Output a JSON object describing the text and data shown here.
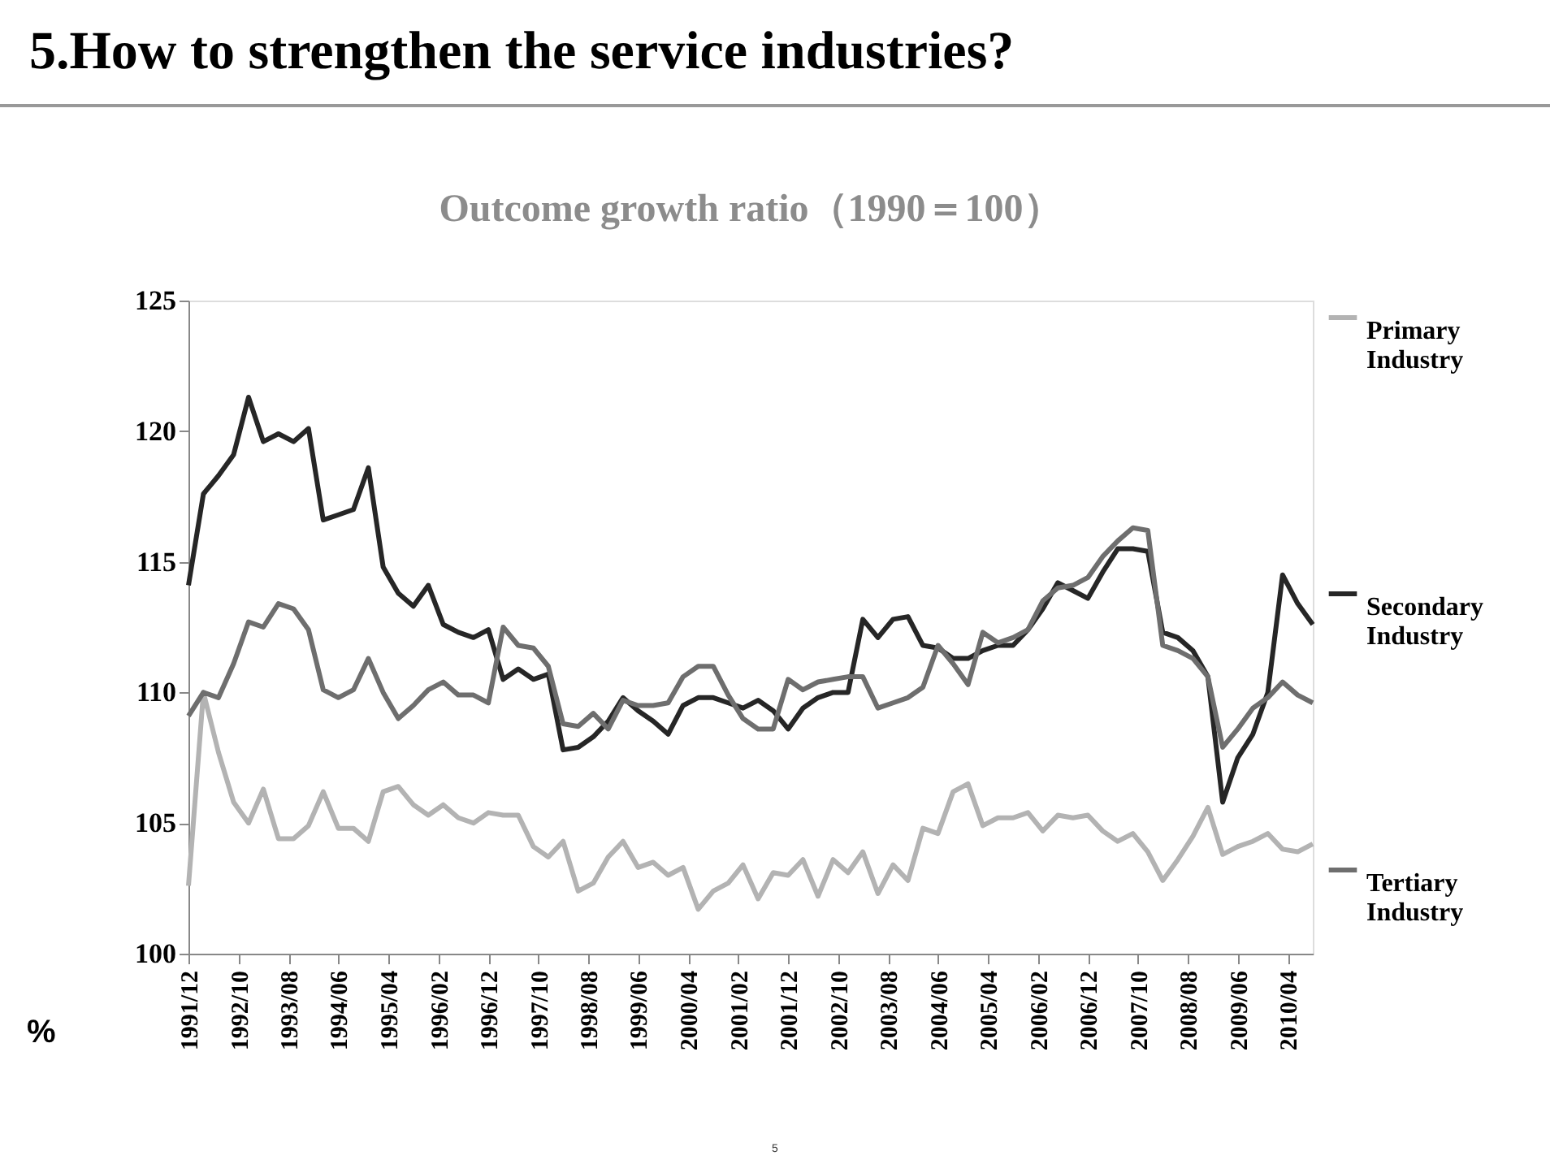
{
  "chart_data": {
    "type": "line",
    "title": "5.How to strengthen the service industries?",
    "subtitle": "Outcome growth ratio（1990＝100）",
    "ylabel": "%",
    "annotations": [
      "5"
    ],
    "x": [
      "1991-12",
      "1992-03",
      "1992-06",
      "1992-09",
      "1992-12",
      "1993-03",
      "1993-06",
      "1993-09",
      "1993-12",
      "1994-03",
      "1994-06",
      "1994-09",
      "1994-12",
      "1995-03",
      "1995-06",
      "1995-09",
      "1995-12",
      "1996-03",
      "1996-06",
      "1996-09",
      "1996-12",
      "1997-03",
      "1997-06",
      "1997-09",
      "1997-12",
      "1998-03",
      "1998-06",
      "1998-09",
      "1998-12",
      "1999-03",
      "1999-06",
      "1999-09",
      "1999-12",
      "2000-03",
      "2000-06",
      "2000-09",
      "2000-12",
      "2001-03",
      "2001-06",
      "2001-09",
      "2001-12",
      "2002-03",
      "2002-06",
      "2002-09",
      "2002-12",
      "2003-03",
      "2003-06",
      "2003-09",
      "2003-12",
      "2004-03",
      "2004-06",
      "2004-09",
      "2004-12",
      "2005-03",
      "2005-06",
      "2005-09",
      "2005-12",
      "2006-03",
      "2006-06",
      "2006-09",
      "2006-12",
      "2007-03",
      "2007-06",
      "2007-09",
      "2007-12",
      "2008-03",
      "2008-06",
      "2008-09",
      "2008-12",
      "2009-03",
      "2009-06",
      "2009-09",
      "2009-12",
      "2010-03",
      "2010-06",
      "2010-09"
    ],
    "series": [
      {
        "name": "Primary Industry",
        "color": "#b3b3b3",
        "values": [
          102.6,
          110.0,
          107.7,
          105.8,
          105.0,
          106.3,
          104.4,
          104.4,
          104.9,
          106.2,
          104.8,
          104.8,
          104.3,
          106.2,
          106.4,
          105.7,
          105.3,
          105.7,
          105.2,
          105.0,
          105.4,
          105.3,
          105.3,
          104.1,
          103.7,
          104.3,
          102.4,
          102.7,
          103.7,
          104.3,
          103.3,
          103.5,
          103.0,
          103.3,
          101.7,
          102.4,
          102.7,
          103.4,
          102.1,
          103.1,
          103.0,
          103.6,
          102.2,
          103.6,
          103.1,
          103.9,
          102.3,
          103.4,
          102.8,
          104.8,
          104.6,
          106.2,
          106.5,
          104.9,
          105.2,
          105.2,
          105.4,
          104.7,
          105.3,
          105.2,
          105.3,
          104.7,
          104.3,
          104.6,
          103.9,
          102.8,
          103.6,
          104.5,
          105.6,
          103.8,
          104.1,
          104.3,
          104.6,
          104.0,
          103.9,
          104.2
        ]
      },
      {
        "name": "Secondary Industry",
        "color": "#262626",
        "values": [
          114.1,
          117.6,
          118.3,
          119.1,
          121.3,
          119.6,
          119.9,
          119.6,
          120.1,
          116.6,
          116.8,
          117.0,
          118.6,
          114.8,
          113.8,
          113.3,
          114.1,
          112.6,
          112.3,
          112.1,
          112.4,
          110.5,
          110.9,
          110.5,
          110.7,
          107.8,
          107.9,
          108.3,
          108.9,
          109.8,
          109.3,
          108.9,
          108.4,
          109.5,
          109.8,
          109.8,
          109.6,
          109.4,
          109.7,
          109.3,
          108.6,
          109.4,
          109.8,
          110.0,
          110.0,
          112.8,
          112.1,
          112.8,
          112.9,
          111.8,
          111.7,
          111.3,
          111.3,
          111.6,
          111.8,
          111.8,
          112.4,
          113.2,
          114.2,
          113.9,
          113.6,
          114.6,
          115.5,
          115.5,
          115.4,
          112.3,
          112.1,
          111.6,
          110.6,
          105.8,
          107.5,
          108.4,
          110.0,
          114.5,
          113.4,
          112.6
        ]
      },
      {
        "name": "Tertiary Industry",
        "color": "#6e6e6e",
        "values": [
          109.1,
          110.0,
          109.8,
          111.1,
          112.7,
          112.5,
          113.4,
          113.2,
          112.4,
          110.1,
          109.8,
          110.1,
          111.3,
          110.0,
          109.0,
          109.5,
          110.1,
          110.4,
          109.9,
          109.9,
          109.6,
          112.5,
          111.8,
          111.7,
          111.0,
          108.8,
          108.7,
          109.2,
          108.6,
          109.7,
          109.5,
          109.5,
          109.6,
          110.6,
          111.0,
          111.0,
          109.9,
          109.0,
          108.6,
          108.6,
          110.5,
          110.1,
          110.4,
          110.5,
          110.6,
          110.6,
          109.4,
          109.6,
          109.8,
          110.2,
          111.8,
          111.1,
          110.3,
          112.3,
          111.9,
          112.1,
          112.4,
          113.5,
          114.0,
          114.1,
          114.4,
          115.2,
          115.8,
          116.3,
          116.2,
          111.8,
          111.6,
          111.3,
          110.6,
          107.9,
          108.6,
          109.4,
          109.8,
          110.4,
          109.9,
          109.6
        ]
      }
    ],
    "xlim": [
      "1991-12",
      "2010-09"
    ],
    "xticks": [
      {
        "value": "1991-12",
        "label": "1991/12"
      },
      {
        "value": "1992-10",
        "label": "1992/10"
      },
      {
        "value": "1993-08",
        "label": "1993/08"
      },
      {
        "value": "1994-06",
        "label": "1994/06"
      },
      {
        "value": "1995-04",
        "label": "1995/04"
      },
      {
        "value": "1996-02",
        "label": "1996/02"
      },
      {
        "value": "1996-12",
        "label": "1996/12"
      },
      {
        "value": "1997-10",
        "label": "1997/10"
      },
      {
        "value": "1998-08",
        "label": "1998/08"
      },
      {
        "value": "1999-06",
        "label": "1999/06"
      },
      {
        "value": "2000-04",
        "label": "2000/04"
      },
      {
        "value": "2001-02",
        "label": "2001/02"
      },
      {
        "value": "2001-12",
        "label": "2001/12"
      },
      {
        "value": "2002-10",
        "label": "2002/10"
      },
      {
        "value": "2003-08",
        "label": "2003/08"
      },
      {
        "value": "2004-06",
        "label": "2004/06"
      },
      {
        "value": "2005-04",
        "label": "2005/04"
      },
      {
        "value": "2006-02",
        "label": "2006/02"
      },
      {
        "value": "2006-12",
        "label": "2006/12"
      },
      {
        "value": "2007-10",
        "label": "2007/10"
      },
      {
        "value": "2008-08",
        "label": "2008/08"
      },
      {
        "value": "2009-06",
        "label": "2009/06"
      },
      {
        "value": "2010-04",
        "label": "2010/04"
      }
    ],
    "ylim": [
      100,
      125
    ],
    "yticks": [
      100,
      105,
      110,
      115,
      120,
      125
    ],
    "legend": "right"
  }
}
